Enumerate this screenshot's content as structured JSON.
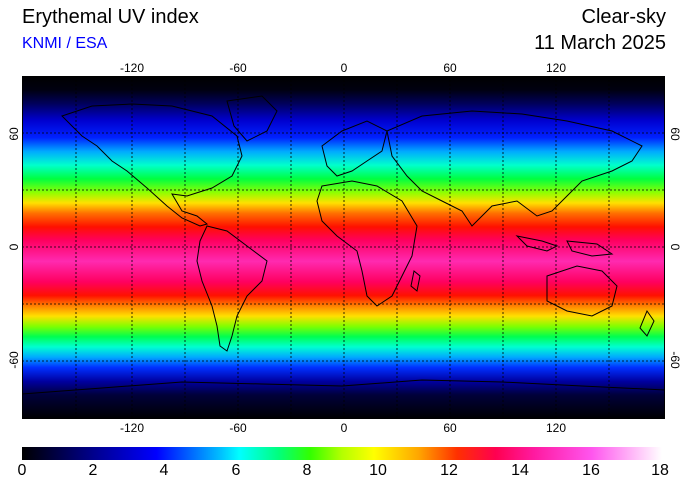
{
  "header": {
    "title": "Erythemal UV index",
    "credit": "KNMI / ESA",
    "sky_type": "Clear-sky",
    "date": "11 March 2025"
  },
  "map": {
    "lon_labels": [
      "-120",
      "-60",
      "0",
      "60",
      "120"
    ],
    "lat_labels_left": [
      "60",
      "0",
      "-60"
    ],
    "lat_labels_right": [
      "60",
      "0",
      "-60"
    ]
  },
  "colorbar": {
    "labels": [
      "0",
      "2",
      "4",
      "6",
      "8",
      "10",
      "12",
      "14",
      "16",
      "18"
    ],
    "colors": [
      "#000000",
      "#00008b",
      "#0000ff",
      "#00bfff",
      "#00ffff",
      "#00ff7f",
      "#32ff00",
      "#b4ff00",
      "#ffff00",
      "#ffa500",
      "#ff3000",
      "#ff0050",
      "#ff1aa0",
      "#ff55ee",
      "#ffffff"
    ]
  }
}
